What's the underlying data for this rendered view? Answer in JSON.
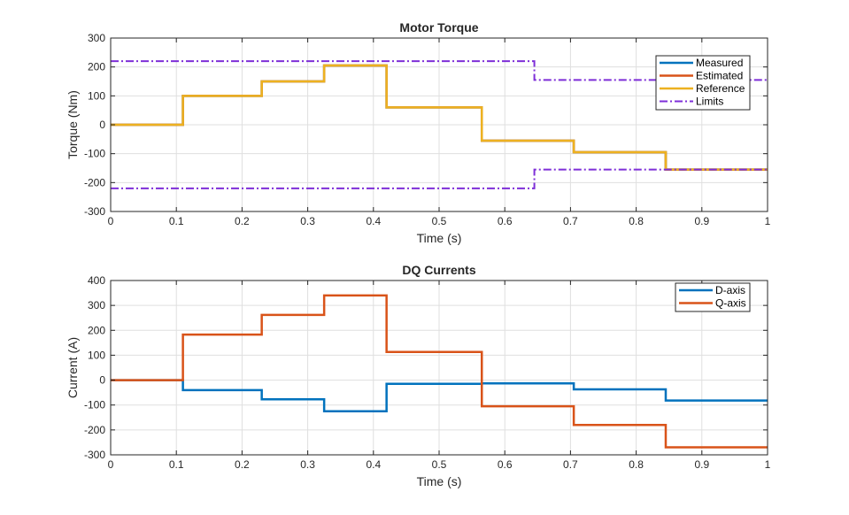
{
  "chart_data": [
    {
      "type": "line",
      "title": "Motor Torque",
      "xlabel": "Time (s)",
      "ylabel": "Torque (Nm)",
      "xlim": [
        0,
        1
      ],
      "ylim": [
        -300,
        300
      ],
      "xticks": [
        0,
        0.1,
        0.2,
        0.3,
        0.4,
        0.5,
        0.6,
        0.7,
        0.8,
        0.9,
        1
      ],
      "yticks": [
        -300,
        -200,
        -100,
        0,
        100,
        200,
        300
      ],
      "grid": true,
      "legend_placement": "top-right",
      "step": true,
      "series": [
        {
          "name": "Measured",
          "color": "#0072BD",
          "style": "solid",
          "x": [
            0,
            0.11,
            0.23,
            0.325,
            0.42,
            0.565,
            0.705,
            0.845,
            1
          ],
          "y": [
            0,
            100,
            150,
            205,
            60,
            -55,
            -95,
            -155,
            -155
          ]
        },
        {
          "name": "Estimated",
          "color": "#D95319",
          "style": "solid",
          "x": [
            0,
            0.11,
            0.23,
            0.325,
            0.42,
            0.565,
            0.705,
            0.845,
            1
          ],
          "y": [
            0,
            100,
            150,
            205,
            60,
            -55,
            -95,
            -155,
            -155
          ]
        },
        {
          "name": "Reference",
          "color": "#EDB120",
          "style": "solid",
          "x": [
            0,
            0.11,
            0.23,
            0.325,
            0.42,
            0.565,
            0.705,
            0.845,
            1
          ],
          "y": [
            0,
            100,
            150,
            205,
            60,
            -55,
            -95,
            -155,
            -155
          ]
        },
        {
          "name": "Limits",
          "color": "#7E2FD8",
          "style": "dashdot",
          "x": [
            0,
            0.645,
            1
          ],
          "y": [
            220,
            155,
            155
          ]
        },
        {
          "name": "",
          "color": "#7E2FD8",
          "style": "dashdot",
          "x": [
            0,
            0.645,
            1
          ],
          "y": [
            -220,
            -155,
            -155
          ]
        }
      ]
    },
    {
      "type": "line",
      "title": "DQ Currents",
      "xlabel": "Time (s)",
      "ylabel": "Current (A)",
      "xlim": [
        0,
        1
      ],
      "ylim": [
        -300,
        400
      ],
      "xticks": [
        0,
        0.1,
        0.2,
        0.3,
        0.4,
        0.5,
        0.6,
        0.7,
        0.8,
        0.9,
        1
      ],
      "yticks": [
        -300,
        -200,
        -100,
        0,
        100,
        200,
        300,
        400
      ],
      "grid": true,
      "legend_placement": "top-right",
      "step": true,
      "series": [
        {
          "name": "D-axis",
          "color": "#0072BD",
          "style": "solid",
          "x": [
            0,
            0.11,
            0.23,
            0.325,
            0.42,
            0.565,
            0.705,
            0.845,
            1
          ],
          "y": [
            0,
            -40,
            -77,
            -125,
            -15,
            -13,
            -37,
            -82,
            -82
          ]
        },
        {
          "name": "Q-axis",
          "color": "#D95319",
          "style": "solid",
          "x": [
            0,
            0.11,
            0.23,
            0.325,
            0.42,
            0.565,
            0.705,
            0.845,
            1
          ],
          "y": [
            0,
            183,
            262,
            340,
            113,
            -105,
            -180,
            -270,
            -270
          ]
        }
      ]
    }
  ]
}
